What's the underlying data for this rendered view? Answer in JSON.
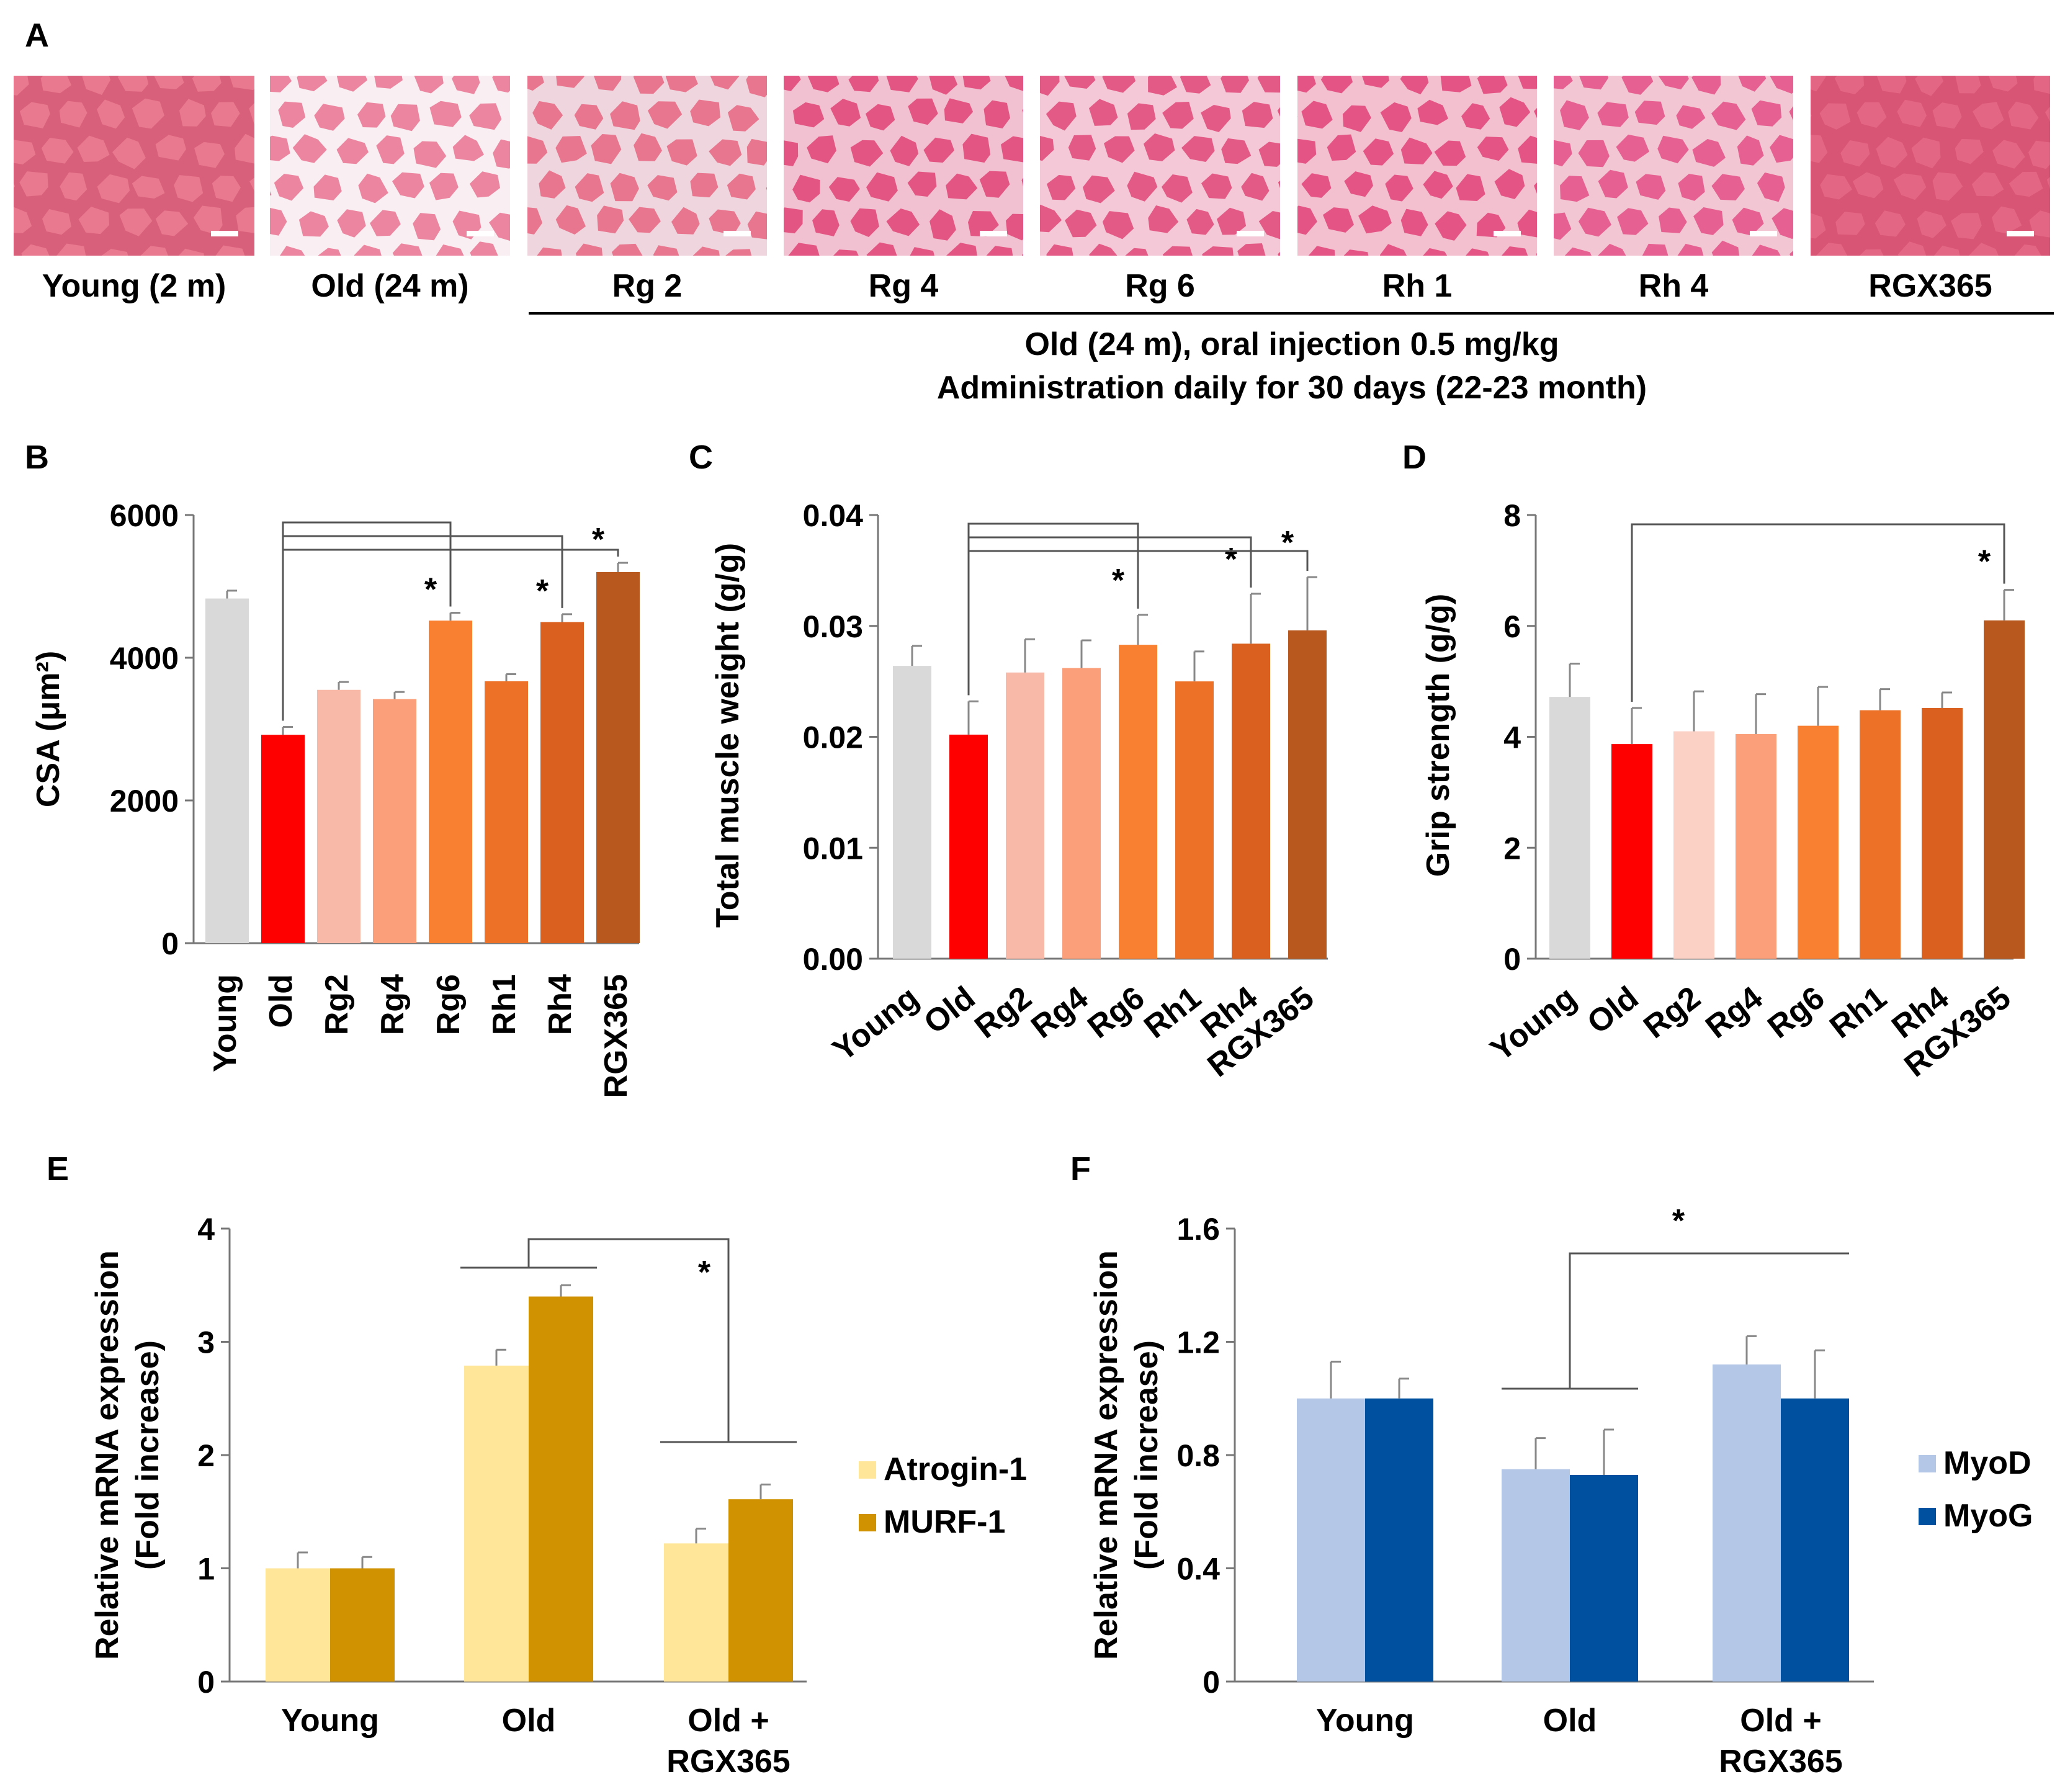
{
  "panel_letters": [
    "A",
    "B",
    "C",
    "D",
    "E",
    "F"
  ],
  "panel_a": {
    "images": [
      {
        "label": "Young (2 m)",
        "tone": "#e8758a",
        "cell": "#e8798f",
        "gap": "#d9607a"
      },
      {
        "label": "Old (24 m)",
        "tone": "#f7e6ec",
        "cell": "#ec86a0",
        "gap": "#f9eef2"
      },
      {
        "label": "Rg 2",
        "tone": "#ead1da",
        "cell": "#e9768f",
        "gap": "#efd6de"
      },
      {
        "label": "Rg 4",
        "tone": "#e55686",
        "cell": "#e35683",
        "gap": "#f2c1d1"
      },
      {
        "label": "Rg 6",
        "tone": "#e55686",
        "cell": "#e45a87",
        "gap": "#f4c8d6"
      },
      {
        "label": "Rh 1",
        "tone": "#e45082",
        "cell": "#e45585",
        "gap": "#f3c0d0"
      },
      {
        "label": "Rh 4",
        "tone": "#e55d8a",
        "cell": "#e66191",
        "gap": "#f2c6d3"
      },
      {
        "label": "RGX365",
        "tone": "#e25f80",
        "cell": "#e36784",
        "gap": "#d95575"
      }
    ],
    "caption_line1": "Old (24 m), oral injection 0.5 mg/kg",
    "caption_line2": "Administration daily for 30 days (22-23 month)"
  },
  "chart_data": [
    {
      "panel": "B",
      "type": "bar",
      "ylabel": "CSA (μm²)",
      "ylim": [
        0,
        6000
      ],
      "yticks": [
        "0",
        "2000",
        "4000",
        "6000"
      ],
      "categories": [
        "Young",
        "Old",
        "Rg2",
        "Rg4",
        "Rg6",
        "Rh1",
        "Rh4",
        "RGX365"
      ],
      "values": [
        4830,
        2920,
        3550,
        3420,
        4520,
        3670,
        4500,
        5200
      ],
      "errors": [
        110,
        110,
        110,
        100,
        110,
        100,
        110,
        130
      ],
      "colors": [
        "#d9d9d9",
        "#ff0000",
        "#f8b9a8",
        "#fa9f79",
        "#f88030",
        "#ee7128",
        "#d9601f",
        "#b9581e"
      ],
      "significance": [
        {
          "from": "Old",
          "to": "Rg6",
          "mark": "*"
        },
        {
          "from": "Old",
          "to": "Rh4",
          "mark": "*"
        },
        {
          "from": "Old",
          "to": "RGX365",
          "mark": "*"
        }
      ]
    },
    {
      "panel": "C",
      "type": "bar",
      "ylabel": "Total muscle weight (g/g)",
      "ylim": [
        0,
        0.04
      ],
      "yticks": [
        "0.00",
        "0.01",
        "0.02",
        "0.03",
        "0.04"
      ],
      "categories": [
        "Young",
        "Old",
        "Rg2",
        "Rg4",
        "Rg6",
        "Rh1",
        "Rh4",
        "RGX365"
      ],
      "values": [
        0.0264,
        0.0202,
        0.0258,
        0.0262,
        0.0283,
        0.025,
        0.0284,
        0.0296
      ],
      "errors": [
        0.0018,
        0.003,
        0.003,
        0.0025,
        0.0027,
        0.0027,
        0.0045,
        0.0048
      ],
      "colors": [
        "#d9d9d9",
        "#ff0000",
        "#f8b9a8",
        "#fa9f79",
        "#f88030",
        "#ee7128",
        "#d9601f",
        "#b9581e"
      ],
      "significance": [
        {
          "from": "Old",
          "to": "Rg6",
          "mark": "*"
        },
        {
          "from": "Old",
          "to": "Rh4",
          "mark": "*"
        },
        {
          "from": "Old",
          "to": "RGX365",
          "mark": "*"
        }
      ]
    },
    {
      "panel": "D",
      "type": "bar",
      "ylabel": "Grip strength (g/g)",
      "ylim": [
        0,
        8
      ],
      "yticks": [
        "0",
        "2",
        "4",
        "6",
        "8"
      ],
      "categories": [
        "Young",
        "Old",
        "Rg2",
        "Rg4",
        "Rg6",
        "Rh1",
        "Rh4",
        "RGX365"
      ],
      "values": [
        4.72,
        3.87,
        4.1,
        4.05,
        4.2,
        4.48,
        4.52,
        6.1
      ],
      "errors": [
        0.6,
        0.65,
        0.72,
        0.72,
        0.7,
        0.38,
        0.28,
        0.55
      ],
      "colors": [
        "#d9d9d9",
        "#ff0000",
        "#fcd1c5",
        "#fa9f79",
        "#f88030",
        "#ee7128",
        "#d9601f",
        "#b9581e"
      ],
      "significance": [
        {
          "from": "Old",
          "to": "RGX365",
          "mark": "*"
        }
      ]
    },
    {
      "panel": "E",
      "type": "bar",
      "ylabel": [
        "Relative mRNA expression",
        "(Fold increase)"
      ],
      "ylim": [
        0,
        4
      ],
      "yticks": [
        "0",
        "1",
        "2",
        "3",
        "4"
      ],
      "categories": [
        "Young",
        "Old",
        "Old +\nRGX365"
      ],
      "series": [
        {
          "name": "Atrogin-1",
          "color": "#ffe699",
          "values": [
            1.0,
            2.79,
            1.22
          ],
          "errors": [
            0.14,
            0.14,
            0.13
          ]
        },
        {
          "name": "MURF-1",
          "color": "#d09200",
          "values": [
            1.0,
            3.4,
            1.61
          ],
          "errors": [
            0.1,
            0.1,
            0.13
          ]
        }
      ],
      "significance": [
        {
          "from": "Old",
          "to": "Old +\nRGX365",
          "mark": "*"
        }
      ]
    },
    {
      "panel": "F",
      "type": "bar",
      "ylabel": [
        "Relative mRNA expression",
        "(Fold increase)"
      ],
      "ylim": [
        0,
        1.6
      ],
      "yticks": [
        "0",
        "0.4",
        "0.8",
        "1.2",
        "1.6"
      ],
      "categories": [
        "Young",
        "Old",
        "Old +\nRGX365"
      ],
      "series": [
        {
          "name": "MyoD",
          "color": "#b4c7e7",
          "values": [
            1.0,
            0.75,
            1.12
          ],
          "errors": [
            0.13,
            0.11,
            0.1
          ]
        },
        {
          "name": "MyoG",
          "color": "#0050a0",
          "values": [
            1.0,
            0.73,
            1.0
          ],
          "errors": [
            0.07,
            0.16,
            0.17
          ]
        }
      ],
      "significance": [
        {
          "from": "Old",
          "to": "Old +\nRGX365",
          "mark": "*"
        }
      ]
    }
  ]
}
